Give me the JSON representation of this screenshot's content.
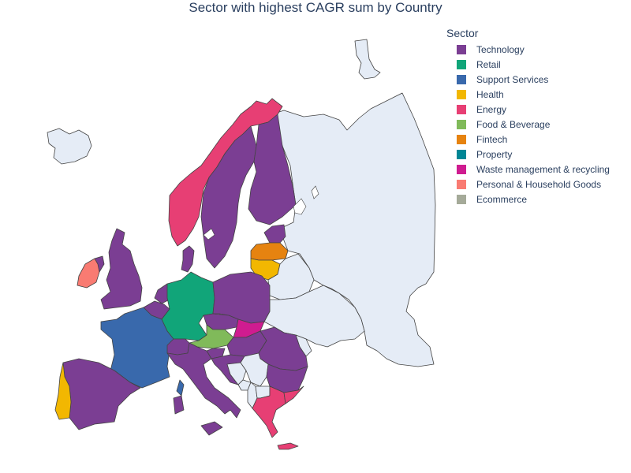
{
  "title": "Sector with highest CAGR sum by Country",
  "legend": {
    "title": "Sector",
    "items": [
      {
        "label": "Technology",
        "color": "#7b3e93"
      },
      {
        "label": "Retail",
        "color": "#11a579"
      },
      {
        "label": "Support Services",
        "color": "#3969ac"
      },
      {
        "label": "Health",
        "color": "#f2b701"
      },
      {
        "label": "Energy",
        "color": "#e73f74"
      },
      {
        "label": "Food & Beverage",
        "color": "#80ba5a"
      },
      {
        "label": "Fintech",
        "color": "#e68310"
      },
      {
        "label": "Property",
        "color": "#008695"
      },
      {
        "label": "Waste management & recycling",
        "color": "#cf1c90"
      },
      {
        "label": "Personal & Household Goods",
        "color": "#f97b72"
      },
      {
        "label": "Ecommerce",
        "color": "#a5aa99"
      }
    ]
  },
  "no_data_color": "#e5ecf6",
  "countries": [
    {
      "name": "Iceland",
      "sector": null
    },
    {
      "name": "Norway",
      "sector": "Energy"
    },
    {
      "name": "Sweden",
      "sector": "Technology"
    },
    {
      "name": "Finland",
      "sector": "Technology"
    },
    {
      "name": "Russia",
      "sector": null
    },
    {
      "name": "Estonia",
      "sector": "Technology"
    },
    {
      "name": "Latvia",
      "sector": "Fintech"
    },
    {
      "name": "Lithuania",
      "sector": "Health"
    },
    {
      "name": "Belarus",
      "sector": null
    },
    {
      "name": "Ukraine",
      "sector": null
    },
    {
      "name": "Ireland",
      "sector": "Personal & Household Goods"
    },
    {
      "name": "United Kingdom",
      "sector": "Technology"
    },
    {
      "name": "Denmark",
      "sector": "Technology"
    },
    {
      "name": "Netherlands",
      "sector": "Technology"
    },
    {
      "name": "Belgium",
      "sector": "Technology"
    },
    {
      "name": "Germany",
      "sector": "Retail"
    },
    {
      "name": "Poland",
      "sector": "Technology"
    },
    {
      "name": "France",
      "sector": "Support Services"
    },
    {
      "name": "Czechia",
      "sector": "Technology"
    },
    {
      "name": "Slovakia",
      "sector": "Waste management & recycling"
    },
    {
      "name": "Austria",
      "sector": "Food & Beverage"
    },
    {
      "name": "Switzerland",
      "sector": "Technology"
    },
    {
      "name": "Hungary",
      "sector": "Technology"
    },
    {
      "name": "Romania",
      "sector": "Technology"
    },
    {
      "name": "Slovenia",
      "sector": "Technology"
    },
    {
      "name": "Croatia",
      "sector": "Technology"
    },
    {
      "name": "Bosnia and Herzegovina",
      "sector": null
    },
    {
      "name": "Serbia",
      "sector": null
    },
    {
      "name": "Montenegro",
      "sector": null
    },
    {
      "name": "Albania",
      "sector": null
    },
    {
      "name": "North Macedonia",
      "sector": null
    },
    {
      "name": "Bulgaria",
      "sector": "Technology"
    },
    {
      "name": "Moldova",
      "sector": null
    },
    {
      "name": "Italy",
      "sector": "Technology"
    },
    {
      "name": "Spain",
      "sector": "Technology"
    },
    {
      "name": "Portugal",
      "sector": "Health"
    },
    {
      "name": "Greece",
      "sector": "Energy"
    },
    {
      "name": "Turkey",
      "sector": "Energy"
    },
    {
      "name": "Corsica",
      "sector": "Support Services"
    }
  ]
}
